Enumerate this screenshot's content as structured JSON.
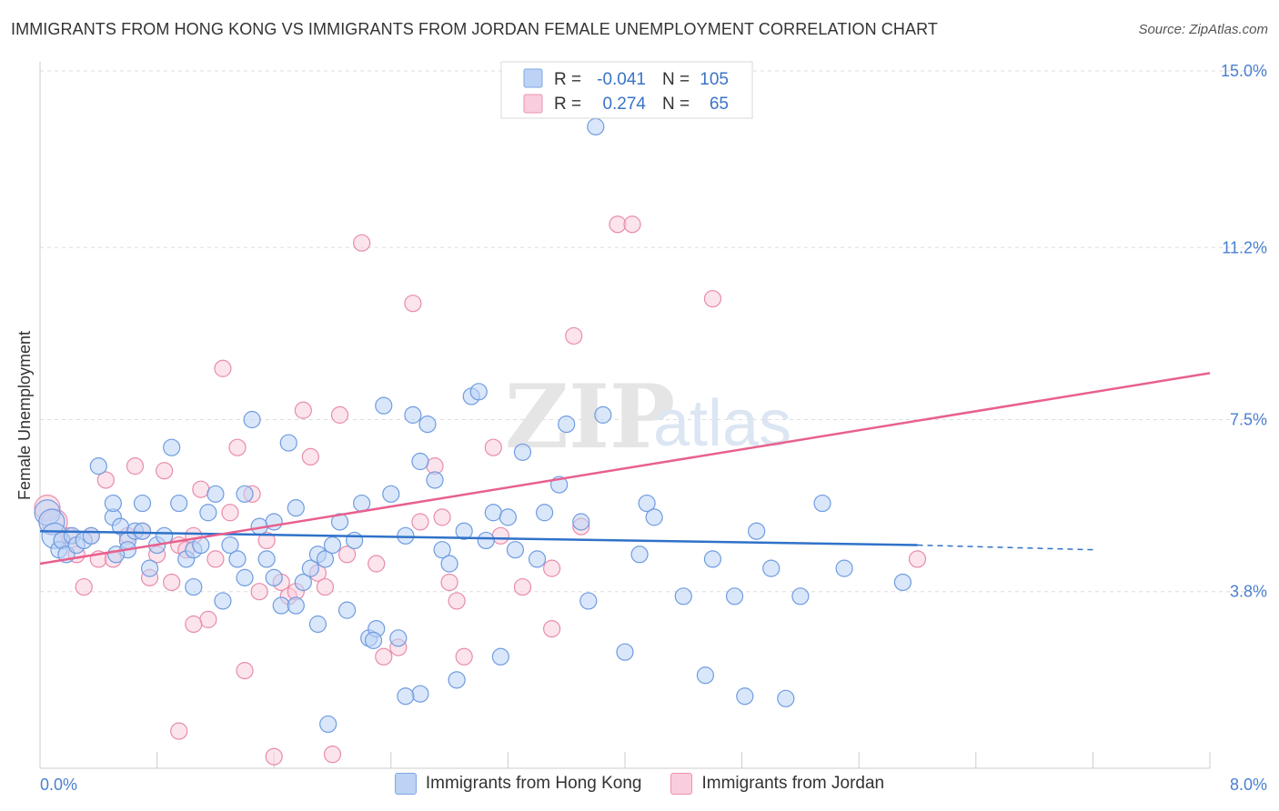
{
  "title": "IMMIGRANTS FROM HONG KONG VS IMMIGRANTS FROM JORDAN FEMALE UNEMPLOYMENT CORRELATION CHART",
  "source": "Source: ZipAtlas.com",
  "watermark": {
    "zip": "ZIP",
    "atlas": "atlas"
  },
  "legend": {
    "rows": [
      {
        "r_label": "R =",
        "r_value": "-0.041",
        "n_label": "N =",
        "n_value": "105"
      },
      {
        "r_label": "R =",
        "r_value": "0.274",
        "n_label": "N =",
        "n_value": "65"
      }
    ]
  },
  "colors": {
    "blue_fill": "#bcd3f5",
    "blue_stroke": "#6f9ce0",
    "blue_line": "#2f72c9",
    "pink_fill": "#f9cddd",
    "pink_stroke": "#e88cac",
    "pink_line": "#e8608e",
    "axis_text": "#4a7fd0",
    "grid": "#dddddd"
  },
  "chart_data": {
    "type": "scatter",
    "title": "IMMIGRANTS FROM HONG KONG VS IMMIGRANTS FROM JORDAN FEMALE UNEMPLOYMENT CORRELATION CHART",
    "xlabel": "",
    "ylabel": "Female Unemployment",
    "xlim": [
      0,
      8.0
    ],
    "ylim": [
      0,
      15.0
    ],
    "x_tick_labels": [
      "0.0%",
      "8.0%"
    ],
    "y_ticks": [
      3.8,
      7.5,
      11.2,
      15.0
    ],
    "y_tick_labels": [
      "3.8%",
      "7.5%",
      "11.2%",
      "15.0%"
    ],
    "grid": true,
    "legend_position": "top-center",
    "series": [
      {
        "name": "Immigrants from Hong Kong",
        "color": "#6f9ce0",
        "trend": {
          "x": [
            0,
            6.0
          ],
          "y": [
            5.1,
            4.8
          ],
          "dashed_to": [
            7.2,
            4.7
          ]
        },
        "points": [
          [
            0.05,
            5.5
          ],
          [
            0.08,
            5.3
          ],
          [
            0.1,
            5.0
          ],
          [
            0.13,
            4.7
          ],
          [
            0.15,
            4.9
          ],
          [
            0.18,
            4.6
          ],
          [
            0.22,
            5.0
          ],
          [
            0.25,
            4.8
          ],
          [
            0.3,
            4.9
          ],
          [
            0.35,
            5.0
          ],
          [
            0.4,
            6.5
          ],
          [
            0.5,
            5.4
          ],
          [
            0.5,
            5.7
          ],
          [
            0.55,
            5.2
          ],
          [
            0.6,
            4.9
          ],
          [
            0.6,
            4.7
          ],
          [
            0.65,
            5.1
          ],
          [
            0.7,
            5.1
          ],
          [
            0.7,
            5.7
          ],
          [
            0.75,
            4.3
          ],
          [
            0.8,
            4.8
          ],
          [
            0.85,
            5.0
          ],
          [
            0.9,
            6.9
          ],
          [
            0.95,
            5.7
          ],
          [
            1.0,
            4.5
          ],
          [
            1.05,
            4.7
          ],
          [
            1.05,
            3.9
          ],
          [
            1.1,
            4.8
          ],
          [
            1.15,
            5.5
          ],
          [
            1.2,
            5.9
          ],
          [
            1.25,
            3.6
          ],
          [
            1.3,
            4.8
          ],
          [
            1.35,
            4.5
          ],
          [
            1.4,
            5.9
          ],
          [
            1.4,
            4.1
          ],
          [
            1.45,
            7.5
          ],
          [
            1.5,
            5.2
          ],
          [
            1.55,
            4.5
          ],
          [
            1.6,
            5.3
          ],
          [
            1.6,
            4.1
          ],
          [
            1.65,
            3.5
          ],
          [
            1.7,
            7.0
          ],
          [
            1.75,
            5.6
          ],
          [
            1.75,
            3.5
          ],
          [
            1.8,
            4.0
          ],
          [
            1.85,
            4.3
          ],
          [
            1.9,
            4.6
          ],
          [
            1.9,
            3.1
          ],
          [
            1.95,
            4.5
          ],
          [
            2.0,
            4.8
          ],
          [
            2.05,
            5.3
          ],
          [
            2.1,
            3.4
          ],
          [
            2.15,
            4.9
          ],
          [
            2.2,
            5.7
          ],
          [
            2.25,
            2.8
          ],
          [
            2.3,
            3.0
          ],
          [
            2.35,
            7.8
          ],
          [
            2.4,
            5.9
          ],
          [
            2.45,
            2.8
          ],
          [
            2.5,
            5.0
          ],
          [
            2.55,
            7.6
          ],
          [
            2.6,
            1.6
          ],
          [
            2.6,
            6.6
          ],
          [
            2.65,
            7.4
          ],
          [
            2.7,
            6.2
          ],
          [
            2.75,
            4.7
          ],
          [
            2.8,
            4.4
          ],
          [
            2.85,
            1.9
          ],
          [
            2.9,
            5.1
          ],
          [
            2.95,
            8.0
          ],
          [
            3.0,
            8.1
          ],
          [
            3.05,
            4.9
          ],
          [
            3.1,
            5.5
          ],
          [
            3.15,
            2.4
          ],
          [
            3.2,
            5.4
          ],
          [
            3.25,
            4.7
          ],
          [
            3.3,
            6.8
          ],
          [
            3.4,
            4.5
          ],
          [
            3.45,
            5.5
          ],
          [
            3.55,
            6.1
          ],
          [
            3.6,
            7.4
          ],
          [
            3.7,
            5.3
          ],
          [
            3.75,
            3.6
          ],
          [
            3.8,
            13.8
          ],
          [
            3.85,
            7.6
          ],
          [
            4.0,
            2.5
          ],
          [
            4.1,
            4.6
          ],
          [
            4.15,
            5.7
          ],
          [
            4.2,
            5.4
          ],
          [
            4.4,
            3.7
          ],
          [
            4.55,
            2.0
          ],
          [
            4.6,
            4.5
          ],
          [
            4.75,
            3.7
          ],
          [
            4.9,
            5.1
          ],
          [
            5.0,
            4.3
          ],
          [
            5.1,
            1.5
          ],
          [
            5.2,
            3.7
          ],
          [
            5.35,
            5.7
          ],
          [
            5.5,
            4.3
          ],
          [
            5.9,
            4.0
          ],
          [
            1.97,
            0.95
          ],
          [
            2.28,
            2.75
          ],
          [
            2.5,
            1.55
          ],
          [
            4.82,
            1.55
          ],
          [
            0.52,
            4.6
          ]
        ]
      },
      {
        "name": "Immigrants from Jordan",
        "color": "#e88cac",
        "trend": {
          "x": [
            0,
            8.0
          ],
          "y": [
            4.4,
            8.5
          ]
        },
        "points": [
          [
            0.05,
            5.6
          ],
          [
            0.1,
            5.3
          ],
          [
            0.15,
            4.9
          ],
          [
            0.2,
            5.0
          ],
          [
            0.25,
            4.6
          ],
          [
            0.3,
            3.9
          ],
          [
            0.35,
            5.0
          ],
          [
            0.4,
            4.5
          ],
          [
            0.45,
            6.2
          ],
          [
            0.5,
            4.5
          ],
          [
            0.6,
            5.0
          ],
          [
            0.65,
            6.5
          ],
          [
            0.7,
            5.1
          ],
          [
            0.75,
            4.1
          ],
          [
            0.8,
            4.6
          ],
          [
            0.85,
            6.4
          ],
          [
            0.9,
            4.0
          ],
          [
            0.95,
            4.8
          ],
          [
            1.0,
            4.7
          ],
          [
            1.05,
            5.0
          ],
          [
            1.1,
            6.0
          ],
          [
            1.15,
            3.2
          ],
          [
            1.2,
            4.5
          ],
          [
            1.25,
            8.6
          ],
          [
            1.3,
            5.5
          ],
          [
            1.35,
            6.9
          ],
          [
            1.4,
            2.1
          ],
          [
            1.45,
            5.9
          ],
          [
            1.5,
            3.8
          ],
          [
            1.55,
            4.9
          ],
          [
            1.6,
            0.25
          ],
          [
            1.65,
            4.0
          ],
          [
            1.7,
            3.7
          ],
          [
            1.75,
            3.8
          ],
          [
            1.8,
            7.7
          ],
          [
            1.85,
            6.7
          ],
          [
            1.9,
            4.2
          ],
          [
            1.95,
            3.9
          ],
          [
            2.0,
            0.3
          ],
          [
            2.05,
            7.6
          ],
          [
            2.1,
            4.6
          ],
          [
            2.2,
            11.3
          ],
          [
            2.3,
            4.4
          ],
          [
            2.35,
            2.4
          ],
          [
            2.45,
            2.6
          ],
          [
            2.55,
            10.0
          ],
          [
            2.6,
            5.3
          ],
          [
            2.7,
            6.5
          ],
          [
            2.75,
            5.4
          ],
          [
            2.8,
            4.0
          ],
          [
            2.85,
            3.6
          ],
          [
            2.9,
            2.4
          ],
          [
            3.1,
            6.9
          ],
          [
            3.15,
            5.0
          ],
          [
            3.3,
            3.9
          ],
          [
            3.5,
            4.3
          ],
          [
            3.5,
            3.0
          ],
          [
            3.65,
            9.3
          ],
          [
            3.7,
            5.2
          ],
          [
            3.95,
            11.7
          ],
          [
            4.05,
            11.7
          ],
          [
            4.6,
            10.1
          ],
          [
            6.0,
            4.5
          ],
          [
            0.95,
            0.8
          ],
          [
            1.05,
            3.1
          ]
        ]
      }
    ]
  },
  "bottom_legend": [
    "Immigrants from Hong Kong",
    "Immigrants from Jordan"
  ]
}
